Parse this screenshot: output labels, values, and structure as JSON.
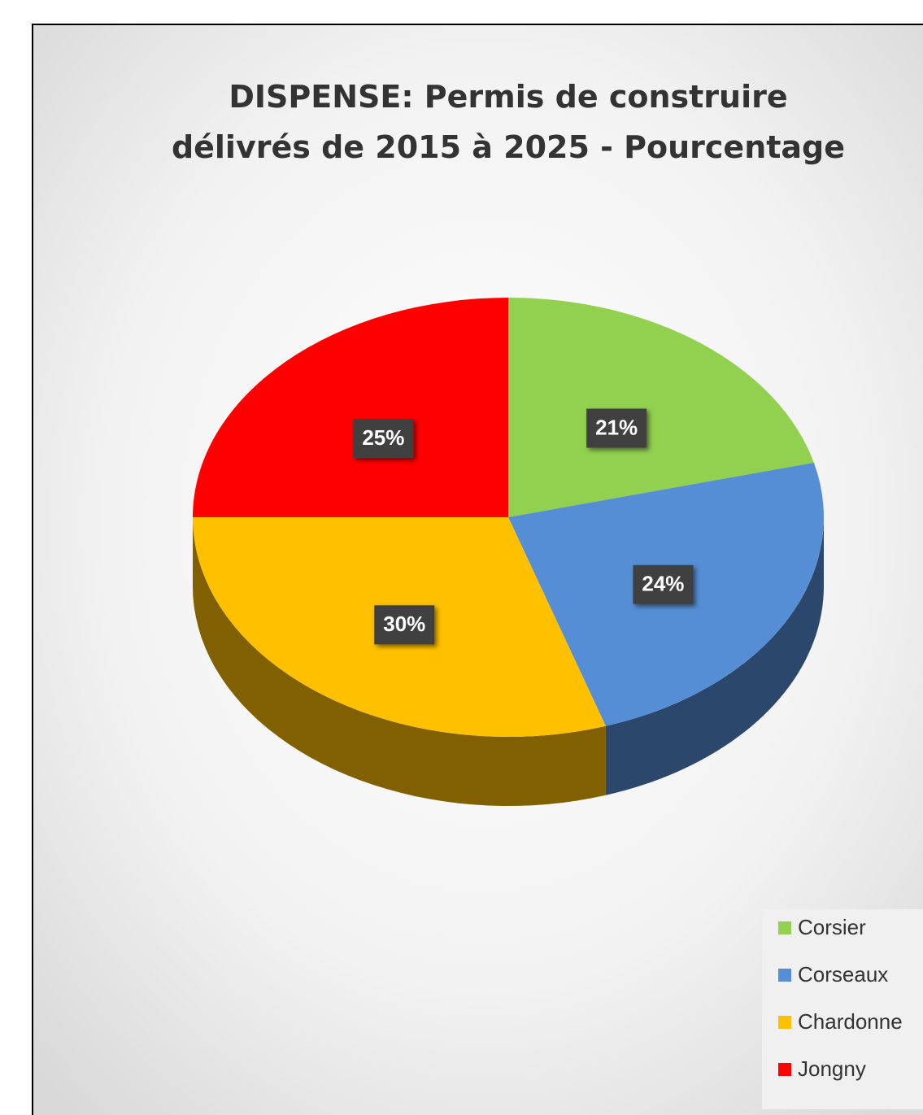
{
  "chart_data": {
    "type": "pie",
    "title": "DISPENSE: Permis de construire\ndélivrés de 2015 à 2025 - Pourcentage",
    "categories": [
      "Corsier",
      "Corseaux",
      "Chardonne",
      "Jongny"
    ],
    "values": [
      21,
      24,
      30,
      25
    ],
    "value_labels": [
      "21%",
      "24%",
      "30%",
      "25%"
    ],
    "colors": [
      "#92d050",
      "#558ed5",
      "#ffc000",
      "#ff0000"
    ],
    "legend": "bottom-right"
  }
}
